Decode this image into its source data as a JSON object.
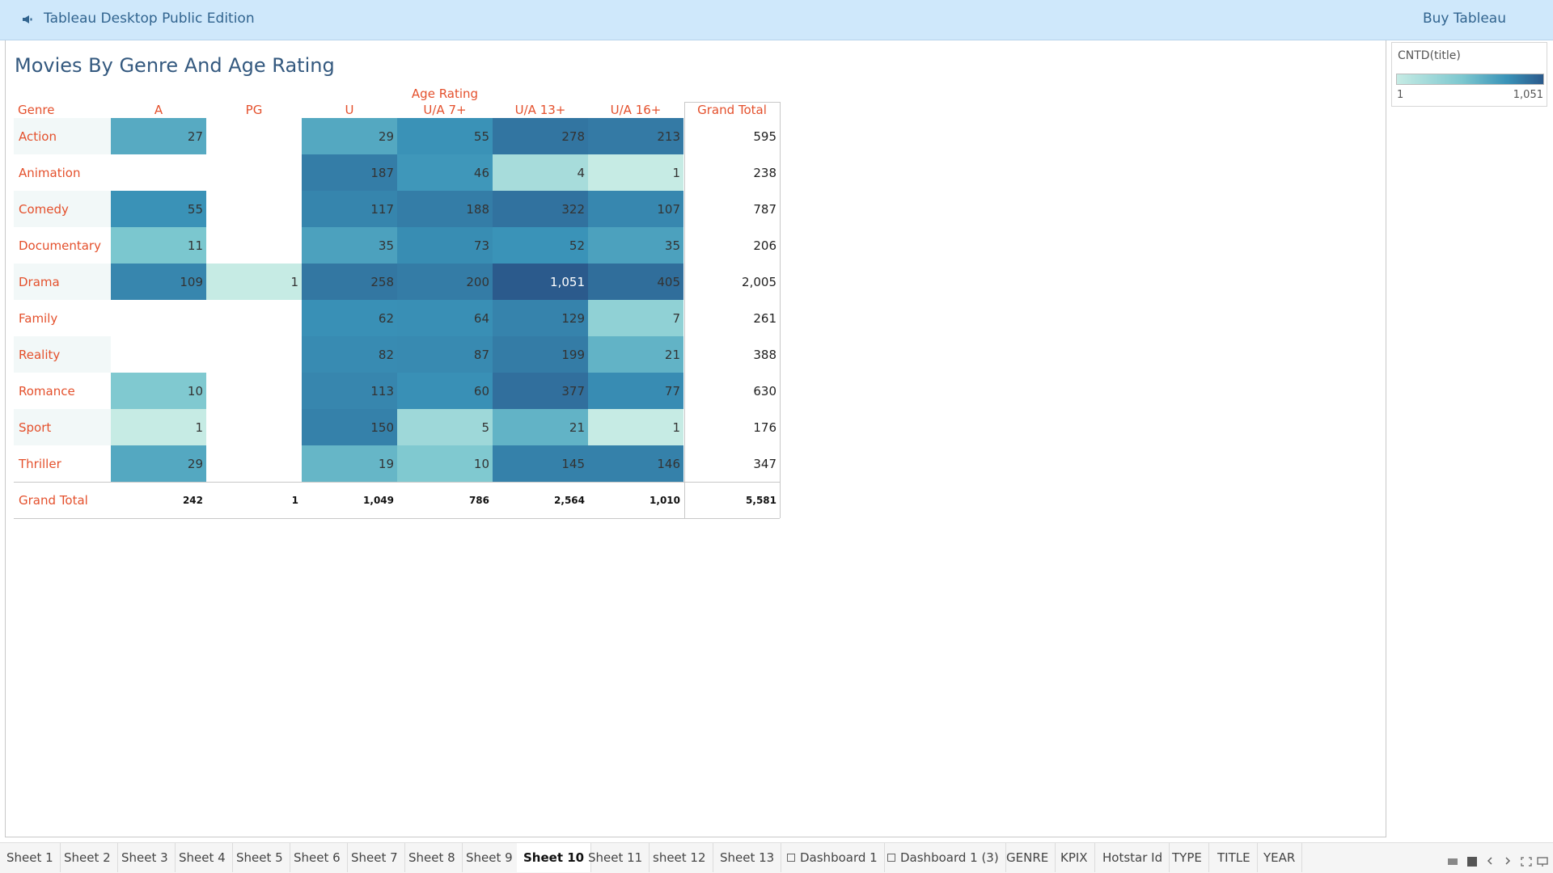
{
  "banner": {
    "app_title": "Tableau Desktop Public Edition",
    "buy_label": "Buy Tableau",
    "icon": "megaphone-icon"
  },
  "sheet": {
    "title": "Movies By Genre And Age Rating",
    "row_header": "Genre",
    "col_group_header": "Age Rating",
    "grand_total_header": "Grand Total",
    "grand_total_row_label": "Grand Total"
  },
  "chart_data": {
    "type": "heatmap",
    "title": "Movies By Genre And Age Rating",
    "measure": "CNTD(title)",
    "columns": [
      "A",
      "PG",
      "U",
      "U/A 7+",
      "U/A 13+",
      "U/A 16+"
    ],
    "rows": [
      "Action",
      "Animation",
      "Comedy",
      "Documentary",
      "Drama",
      "Family",
      "Reality",
      "Romance",
      "Sport",
      "Thriller"
    ],
    "values": [
      [
        27,
        null,
        29,
        55,
        278,
        213
      ],
      [
        null,
        null,
        187,
        46,
        4,
        1
      ],
      [
        55,
        null,
        117,
        188,
        322,
        107
      ],
      [
        11,
        null,
        35,
        73,
        52,
        35
      ],
      [
        109,
        1,
        258,
        200,
        1051,
        405
      ],
      [
        null,
        null,
        62,
        64,
        129,
        7
      ],
      [
        null,
        null,
        82,
        87,
        199,
        21
      ],
      [
        10,
        null,
        113,
        60,
        377,
        77
      ],
      [
        1,
        null,
        150,
        5,
        21,
        1
      ],
      [
        29,
        null,
        19,
        10,
        145,
        146
      ]
    ],
    "row_totals": [
      "595",
      "238",
      "787",
      "206",
      "2,005",
      "261",
      "388",
      "630",
      "176",
      "347"
    ],
    "column_totals": [
      "242",
      "1",
      "1,049",
      "786",
      "2,564",
      "1,010"
    ],
    "grand_total": "5,581",
    "color_range": [
      1,
      1051
    ],
    "colors": [
      "#c6ebe4",
      "#2b5a8c"
    ]
  },
  "legend": {
    "title": "CNTD(title)",
    "min_label": "1",
    "max_label": "1,051"
  },
  "tabs": [
    {
      "label": "Sheet 1"
    },
    {
      "label": "Sheet 2"
    },
    {
      "label": "Sheet 3"
    },
    {
      "label": "Sheet 4"
    },
    {
      "label": "Sheet 5"
    },
    {
      "label": "Sheet 6"
    },
    {
      "label": "Sheet 7"
    },
    {
      "label": "Sheet 8"
    },
    {
      "label": "Sheet 9"
    },
    {
      "label": "Sheet 10",
      "active": true
    },
    {
      "label": "Sheet 11"
    },
    {
      "label": "sheet 12"
    },
    {
      "label": "Sheet 13"
    },
    {
      "label": "Dashboard 1",
      "dashboard": true
    },
    {
      "label": "Dashboard 1 (3)",
      "dashboard": true
    },
    {
      "label": "GENRE"
    },
    {
      "label": "KPIX"
    },
    {
      "label": "Hotstar Id"
    },
    {
      "label": "TYPE"
    },
    {
      "label": "TITLE"
    },
    {
      "label": "YEAR"
    }
  ]
}
